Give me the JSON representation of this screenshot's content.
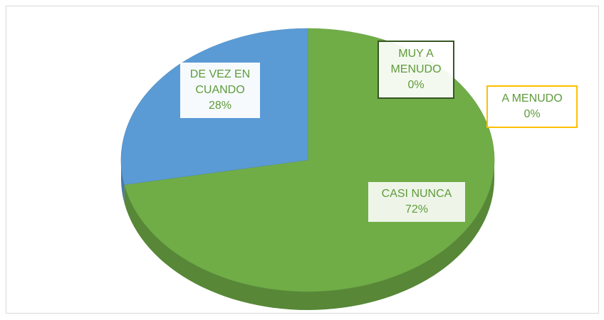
{
  "chart_data": {
    "type": "pie",
    "categories": [
      "MUY A MENUDO",
      "A MENUDO",
      "CASI NUNCA",
      "DE VEZ EN CUANDO"
    ],
    "values": [
      0,
      0,
      72,
      28
    ],
    "value_labels": [
      "0%",
      "0%",
      "72%",
      "28%"
    ],
    "colors": [
      "#375623",
      "#ffc000",
      "#70ad47",
      "#5b9bd5"
    ],
    "three_d": true
  }
}
